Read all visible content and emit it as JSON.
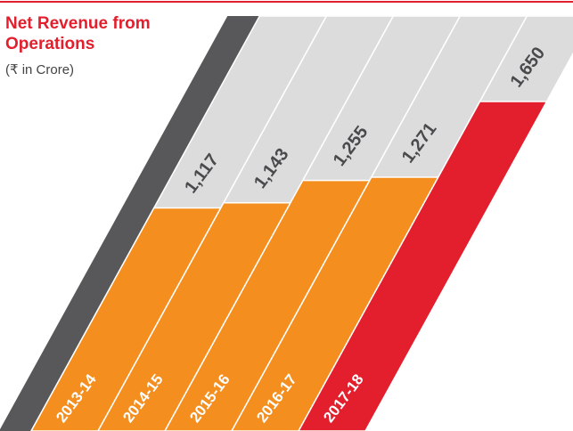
{
  "chart_data": {
    "type": "bar",
    "title_lines": [
      "Net Revenue from",
      "Operations"
    ],
    "subtitle": "(₹ in Crore)",
    "categories": [
      "2013-14",
      "2014-15",
      "2015-16",
      "2016-17",
      "2017-18"
    ],
    "values": [
      1117,
      1143,
      1255,
      1271,
      1650
    ],
    "value_labels": [
      "1,117",
      "1,143",
      "1,255",
      "1,271",
      "1,650"
    ],
    "colors": [
      "#f48f1f",
      "#f48f1f",
      "#f48f1f",
      "#f48f1f",
      "#e31e2d"
    ]
  }
}
